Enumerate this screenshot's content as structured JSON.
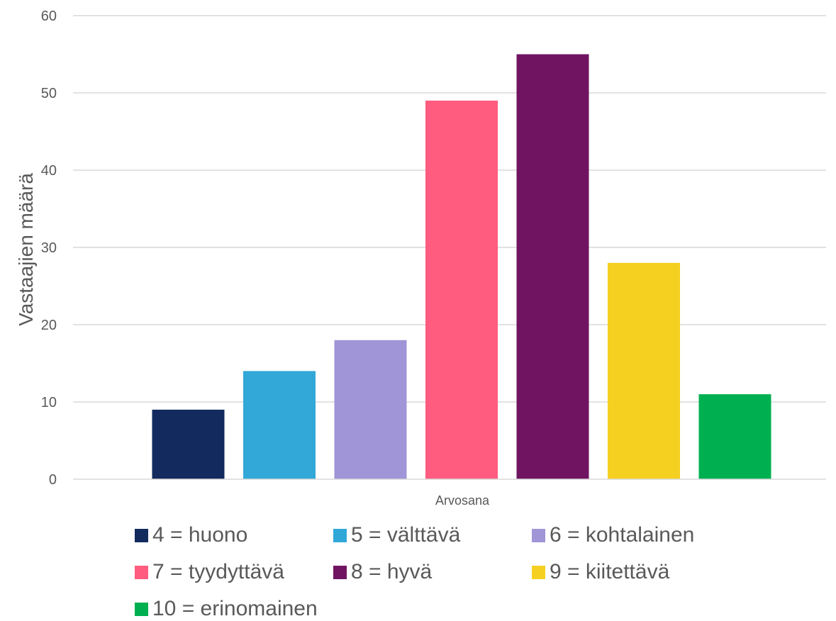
{
  "chart_data": {
    "type": "bar",
    "title": "",
    "xlabel": "Arvosana",
    "ylabel": "Vastaajien määrä",
    "ylim": [
      0,
      60
    ],
    "yticks": [
      "0",
      "10",
      "20",
      "30",
      "40",
      "50",
      "60"
    ],
    "grid": true,
    "legend_position": "bottom",
    "categories": [
      "Arvosana"
    ],
    "series": [
      {
        "name": "4 = huono",
        "values": [
          9
        ],
        "color": "#122a5e"
      },
      {
        "name": "5 = välttävä",
        "values": [
          14
        ],
        "color": "#31a8d8"
      },
      {
        "name": "6 = kohtalainen",
        "values": [
          18
        ],
        "color": "#a095d7"
      },
      {
        "name": "7 = tyydyttävä",
        "values": [
          49
        ],
        "color": "#ff5c80"
      },
      {
        "name": "8 = hyvä",
        "values": [
          55
        ],
        "color": "#701462"
      },
      {
        "name": "9 = kiitettävä",
        "values": [
          28
        ],
        "color": "#f5d021"
      },
      {
        "name": "10 = erinomainen",
        "values": [
          11
        ],
        "color": "#00b050"
      }
    ]
  }
}
